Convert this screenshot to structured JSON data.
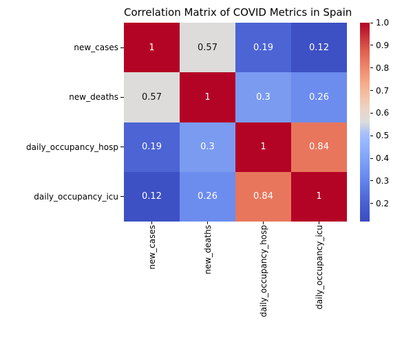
{
  "title": "Correlation Matrix of COVID Metrics in Spain",
  "chart_data": {
    "type": "heatmap",
    "title": "Correlation Matrix of COVID Metrics in Spain",
    "colormap": "coolwarm",
    "categories": [
      "new_cases",
      "new_deaths",
      "daily_occupancy_hosp",
      "daily_occupancy_icu"
    ],
    "x_tick_labels": [
      "new_cases",
      "new_deaths",
      "daily_occupancy_hosp",
      "daily_occupancy_icu"
    ],
    "y_tick_labels": [
      "new_cases",
      "new_deaths",
      "daily_occupancy_hosp",
      "daily_occupancy_icu"
    ],
    "matrix": [
      [
        1,
        0.57,
        0.19,
        0.12
      ],
      [
        0.57,
        1,
        0.3,
        0.26
      ],
      [
        0.19,
        0.3,
        1,
        0.84
      ],
      [
        0.12,
        0.26,
        0.84,
        1
      ]
    ],
    "cell_labels": [
      [
        "1",
        "0.57",
        "0.19",
        "0.12"
      ],
      [
        "0.57",
        "1",
        "0.3",
        "0.26"
      ],
      [
        "0.19",
        "0.3",
        "1",
        "0.84"
      ],
      [
        "0.12",
        "0.26",
        "0.84",
        "1"
      ]
    ],
    "cell_colors": [
      [
        "#B40426",
        "#DDDCDB",
        "#4C64D4",
        "#3D50C4"
      ],
      [
        "#DDDCDB",
        "#B40426",
        "#7B9BF0",
        "#6C8CEE"
      ],
      [
        "#4C64D4",
        "#7B9BF0",
        "#B40426",
        "#E8765C"
      ],
      [
        "#3D50C4",
        "#6C8CEE",
        "#E8765C",
        "#B40426"
      ]
    ],
    "cell_text_colors": [
      [
        "#FFFFFF",
        "#111111",
        "#FFFFFF",
        "#FFFFFF"
      ],
      [
        "#111111",
        "#FFFFFF",
        "#FFFFFF",
        "#FFFFFF"
      ],
      [
        "#FFFFFF",
        "#FFFFFF",
        "#FFFFFF",
        "#FFFFFF"
      ],
      [
        "#FFFFFF",
        "#FFFFFF",
        "#FFFFFF",
        "#FFFFFF"
      ]
    ],
    "colorbar": {
      "vmin": 0.12,
      "vmax": 1.0,
      "ticks": [
        {
          "value": 1.0,
          "label": "1.0"
        },
        {
          "value": 0.9,
          "label": "0.9"
        },
        {
          "value": 0.8,
          "label": "0.8"
        },
        {
          "value": 0.7,
          "label": "0.7"
        },
        {
          "value": 0.6,
          "label": "0.6"
        },
        {
          "value": 0.5,
          "label": "0.5"
        },
        {
          "value": 0.4,
          "label": "0.4"
        },
        {
          "value": 0.3,
          "label": "0.3"
        },
        {
          "value": 0.2,
          "label": "0.2"
        }
      ],
      "gradient_stops_bottom_to_top": [
        {
          "pos": 0,
          "color": "#3B4CC0"
        },
        {
          "pos": 10,
          "color": "#4A63D3"
        },
        {
          "pos": 20,
          "color": "#6282EA"
        },
        {
          "pos": 30,
          "color": "#7C9FF8"
        },
        {
          "pos": 40,
          "color": "#97B7FE"
        },
        {
          "pos": 44,
          "color": "#A5BEFB"
        },
        {
          "pos": 50,
          "color": "#DCDCDB"
        },
        {
          "pos": 56,
          "color": "#EAD5C9"
        },
        {
          "pos": 62,
          "color": "#F2C5AB"
        },
        {
          "pos": 70,
          "color": "#F5A989"
        },
        {
          "pos": 78,
          "color": "#EE8468"
        },
        {
          "pos": 86,
          "color": "#DE5F4E"
        },
        {
          "pos": 93,
          "color": "#C93338"
        },
        {
          "pos": 100,
          "color": "#B40426"
        }
      ]
    },
    "legend_position": "right-colorbar",
    "grid": false,
    "background_color": "#FFFFFF",
    "max_color": "#B40426",
    "min_color": "#3B4CC0",
    "mid_color": "#DDDCDB"
  }
}
